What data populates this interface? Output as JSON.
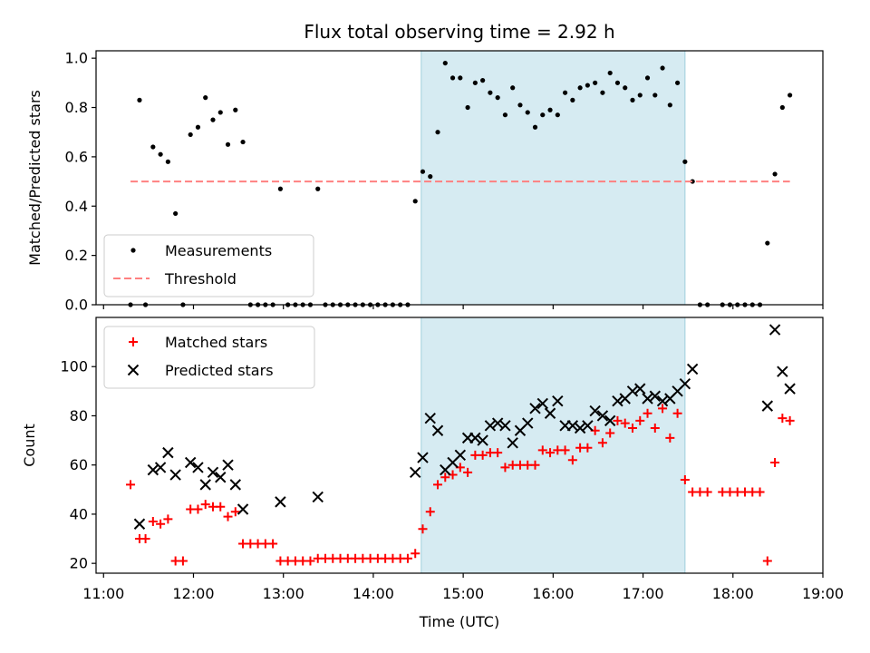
{
  "chart_data": [
    {
      "type": "scatter",
      "title": "Flux total observing time = 2.92 h",
      "xlabel": "",
      "ylabel": "Matched/Predicted stars",
      "ylim": [
        0,
        1.03
      ],
      "yticks": [
        "0.0",
        "0.2",
        "0.4",
        "0.6",
        "0.8",
        "1.0"
      ],
      "highlight_span": [
        "14:32",
        "17:28"
      ],
      "legend": {
        "placement": "lower-left",
        "entries": [
          "Measurements",
          "Threshold"
        ]
      },
      "series": [
        {
          "name": "Measurements",
          "marker": "dot",
          "color": "#000000",
          "points": [
            [
              "11:18",
              0
            ],
            [
              "11:24",
              0.83
            ],
            [
              "11:28",
              0
            ],
            [
              "11:33",
              0.64
            ],
            [
              "11:38",
              0.61
            ],
            [
              "11:43",
              0.58
            ],
            [
              "11:48",
              0.37
            ],
            [
              "11:53",
              0
            ],
            [
              "11:58",
              0.69
            ],
            [
              "12:03",
              0.72
            ],
            [
              "12:08",
              0.84
            ],
            [
              "12:13",
              0.75
            ],
            [
              "12:18",
              0.78
            ],
            [
              "12:23",
              0.65
            ],
            [
              "12:28",
              0.79
            ],
            [
              "12:33",
              0.66
            ],
            [
              "12:38",
              0
            ],
            [
              "12:43",
              0
            ],
            [
              "12:48",
              0
            ],
            [
              "12:53",
              0
            ],
            [
              "12:58",
              0.47
            ],
            [
              "13:03",
              0
            ],
            [
              "13:08",
              0
            ],
            [
              "13:13",
              0
            ],
            [
              "13:18",
              0
            ],
            [
              "13:23",
              0.47
            ],
            [
              "13:28",
              0
            ],
            [
              "13:33",
              0
            ],
            [
              "13:38",
              0
            ],
            [
              "13:43",
              0
            ],
            [
              "13:48",
              0
            ],
            [
              "13:53",
              0
            ],
            [
              "13:58",
              0
            ],
            [
              "14:03",
              0
            ],
            [
              "14:08",
              0
            ],
            [
              "14:13",
              0
            ],
            [
              "14:18",
              0
            ],
            [
              "14:23",
              0
            ],
            [
              "14:28",
              0.42
            ],
            [
              "14:33",
              0.54
            ],
            [
              "14:38",
              0.52
            ],
            [
              "14:43",
              0.7
            ],
            [
              "14:48",
              0.98
            ],
            [
              "14:53",
              0.92
            ],
            [
              "14:58",
              0.92
            ],
            [
              "15:03",
              0.8
            ],
            [
              "15:08",
              0.9
            ],
            [
              "15:13",
              0.91
            ],
            [
              "15:18",
              0.86
            ],
            [
              "15:23",
              0.84
            ],
            [
              "15:28",
              0.77
            ],
            [
              "15:33",
              0.88
            ],
            [
              "15:38",
              0.81
            ],
            [
              "15:43",
              0.78
            ],
            [
              "15:48",
              0.72
            ],
            [
              "15:53",
              0.77
            ],
            [
              "15:58",
              0.79
            ],
            [
              "16:03",
              0.77
            ],
            [
              "16:08",
              0.86
            ],
            [
              "16:13",
              0.83
            ],
            [
              "16:18",
              0.88
            ],
            [
              "16:23",
              0.89
            ],
            [
              "16:28",
              0.9
            ],
            [
              "16:33",
              0.86
            ],
            [
              "16:38",
              0.94
            ],
            [
              "16:43",
              0.9
            ],
            [
              "16:48",
              0.88
            ],
            [
              "16:53",
              0.83
            ],
            [
              "16:58",
              0.85
            ],
            [
              "17:03",
              0.92
            ],
            [
              "17:08",
              0.85
            ],
            [
              "17:13",
              0.96
            ],
            [
              "17:18",
              0.81
            ],
            [
              "17:23",
              0.9
            ],
            [
              "17:28",
              0.58
            ],
            [
              "17:33",
              0.5
            ],
            [
              "17:38",
              0
            ],
            [
              "17:43",
              0
            ],
            [
              "17:53",
              0
            ],
            [
              "17:58",
              0
            ],
            [
              "18:03",
              0
            ],
            [
              "18:08",
              0
            ],
            [
              "18:13",
              0
            ],
            [
              "18:18",
              0
            ],
            [
              "18:23",
              0.25
            ],
            [
              "18:28",
              0.53
            ],
            [
              "18:33",
              0.8
            ],
            [
              "18:38",
              0.85
            ]
          ]
        },
        {
          "name": "Threshold",
          "style": "dashed",
          "color": "#ff8080",
          "points": [
            [
              "11:18",
              0.5
            ],
            [
              "18:38",
              0.5
            ]
          ]
        }
      ]
    },
    {
      "type": "scatter",
      "title": "",
      "xlabel": "Time (UTC)",
      "ylabel": "Count",
      "ylim": [
        16,
        120
      ],
      "yticks": [
        "20",
        "40",
        "60",
        "80",
        "100"
      ],
      "xlim": [
        "10:55",
        "19:00"
      ],
      "xticks": [
        "11:00",
        "12:00",
        "13:00",
        "14:00",
        "15:00",
        "16:00",
        "17:00",
        "18:00",
        "19:00"
      ],
      "highlight_span": [
        "14:32",
        "17:28"
      ],
      "legend": {
        "placement": "upper-left",
        "entries": [
          "Matched stars",
          "Predicted stars"
        ]
      },
      "series": [
        {
          "name": "Matched stars",
          "marker": "plus",
          "color": "#ff0000",
          "points": [
            [
              "11:18",
              52
            ],
            [
              "11:24",
              30
            ],
            [
              "11:28",
              30
            ],
            [
              "11:33",
              37
            ],
            [
              "11:38",
              36
            ],
            [
              "11:43",
              38
            ],
            [
              "11:48",
              21
            ],
            [
              "11:53",
              21
            ],
            [
              "11:58",
              42
            ],
            [
              "12:03",
              42
            ],
            [
              "12:08",
              44
            ],
            [
              "12:13",
              43
            ],
            [
              "12:18",
              43
            ],
            [
              "12:23",
              39
            ],
            [
              "12:28",
              41
            ],
            [
              "12:33",
              28
            ],
            [
              "12:38",
              28
            ],
            [
              "12:43",
              28
            ],
            [
              "12:48",
              28
            ],
            [
              "12:53",
              28
            ],
            [
              "12:58",
              21
            ],
            [
              "13:03",
              21
            ],
            [
              "13:08",
              21
            ],
            [
              "13:13",
              21
            ],
            [
              "13:18",
              21
            ],
            [
              "13:23",
              22
            ],
            [
              "13:28",
              22
            ],
            [
              "13:33",
              22
            ],
            [
              "13:38",
              22
            ],
            [
              "13:43",
              22
            ],
            [
              "13:48",
              22
            ],
            [
              "13:53",
              22
            ],
            [
              "13:58",
              22
            ],
            [
              "14:03",
              22
            ],
            [
              "14:08",
              22
            ],
            [
              "14:13",
              22
            ],
            [
              "14:18",
              22
            ],
            [
              "14:23",
              22
            ],
            [
              "14:28",
              24
            ],
            [
              "14:33",
              34
            ],
            [
              "14:38",
              41
            ],
            [
              "14:43",
              52
            ],
            [
              "14:48",
              55
            ],
            [
              "14:53",
              56
            ],
            [
              "14:58",
              59
            ],
            [
              "15:03",
              57
            ],
            [
              "15:08",
              64
            ],
            [
              "15:13",
              64
            ],
            [
              "15:18",
              65
            ],
            [
              "15:23",
              65
            ],
            [
              "15:28",
              59
            ],
            [
              "15:33",
              60
            ],
            [
              "15:38",
              60
            ],
            [
              "15:43",
              60
            ],
            [
              "15:48",
              60
            ],
            [
              "15:53",
              66
            ],
            [
              "15:58",
              65
            ],
            [
              "16:03",
              66
            ],
            [
              "16:08",
              66
            ],
            [
              "16:13",
              62
            ],
            [
              "16:18",
              67
            ],
            [
              "16:23",
              67
            ],
            [
              "16:28",
              74
            ],
            [
              "16:33",
              69
            ],
            [
              "16:38",
              73
            ],
            [
              "16:43",
              78
            ],
            [
              "16:48",
              77
            ],
            [
              "16:53",
              75
            ],
            [
              "16:58",
              78
            ],
            [
              "17:03",
              81
            ],
            [
              "17:08",
              75
            ],
            [
              "17:13",
              83
            ],
            [
              "17:18",
              71
            ],
            [
              "17:23",
              81
            ],
            [
              "17:28",
              54
            ],
            [
              "17:33",
              49
            ],
            [
              "17:38",
              49
            ],
            [
              "17:43",
              49
            ],
            [
              "17:53",
              49
            ],
            [
              "17:58",
              49
            ],
            [
              "18:03",
              49
            ],
            [
              "18:08",
              49
            ],
            [
              "18:13",
              49
            ],
            [
              "18:18",
              49
            ],
            [
              "18:23",
              21
            ],
            [
              "18:28",
              61
            ],
            [
              "18:33",
              79
            ],
            [
              "18:38",
              78
            ]
          ]
        },
        {
          "name": "Predicted stars",
          "marker": "x",
          "color": "#000000",
          "points": [
            [
              "11:24",
              36
            ],
            [
              "11:33",
              58
            ],
            [
              "11:38",
              59
            ],
            [
              "11:43",
              65
            ],
            [
              "11:48",
              56
            ],
            [
              "11:58",
              61
            ],
            [
              "12:03",
              59
            ],
            [
              "12:08",
              52
            ],
            [
              "12:13",
              57
            ],
            [
              "12:18",
              55
            ],
            [
              "12:23",
              60
            ],
            [
              "12:28",
              52
            ],
            [
              "12:33",
              42
            ],
            [
              "12:58",
              45
            ],
            [
              "13:23",
              47
            ],
            [
              "14:28",
              57
            ],
            [
              "14:33",
              63
            ],
            [
              "14:38",
              79
            ],
            [
              "14:43",
              74
            ],
            [
              "14:48",
              58
            ],
            [
              "14:53",
              61
            ],
            [
              "14:58",
              64
            ],
            [
              "15:03",
              71
            ],
            [
              "15:08",
              71
            ],
            [
              "15:13",
              70
            ],
            [
              "15:18",
              76
            ],
            [
              "15:23",
              77
            ],
            [
              "15:28",
              76
            ],
            [
              "15:33",
              69
            ],
            [
              "15:38",
              74
            ],
            [
              "15:43",
              77
            ],
            [
              "15:48",
              83
            ],
            [
              "15:53",
              85
            ],
            [
              "15:58",
              81
            ],
            [
              "16:03",
              86
            ],
            [
              "16:08",
              76
            ],
            [
              "16:13",
              76
            ],
            [
              "16:18",
              75
            ],
            [
              "16:23",
              76
            ],
            [
              "16:28",
              82
            ],
            [
              "16:33",
              80
            ],
            [
              "16:38",
              78
            ],
            [
              "16:43",
              86
            ],
            [
              "16:48",
              87
            ],
            [
              "16:53",
              90
            ],
            [
              "16:58",
              91
            ],
            [
              "17:03",
              87
            ],
            [
              "17:08",
              88
            ],
            [
              "17:13",
              86
            ],
            [
              "17:18",
              87
            ],
            [
              "17:23",
              90
            ],
            [
              "17:28",
              93
            ],
            [
              "17:33",
              99
            ],
            [
              "18:23",
              84
            ],
            [
              "18:28",
              115
            ],
            [
              "18:33",
              98
            ],
            [
              "18:38",
              91
            ]
          ]
        }
      ]
    }
  ]
}
